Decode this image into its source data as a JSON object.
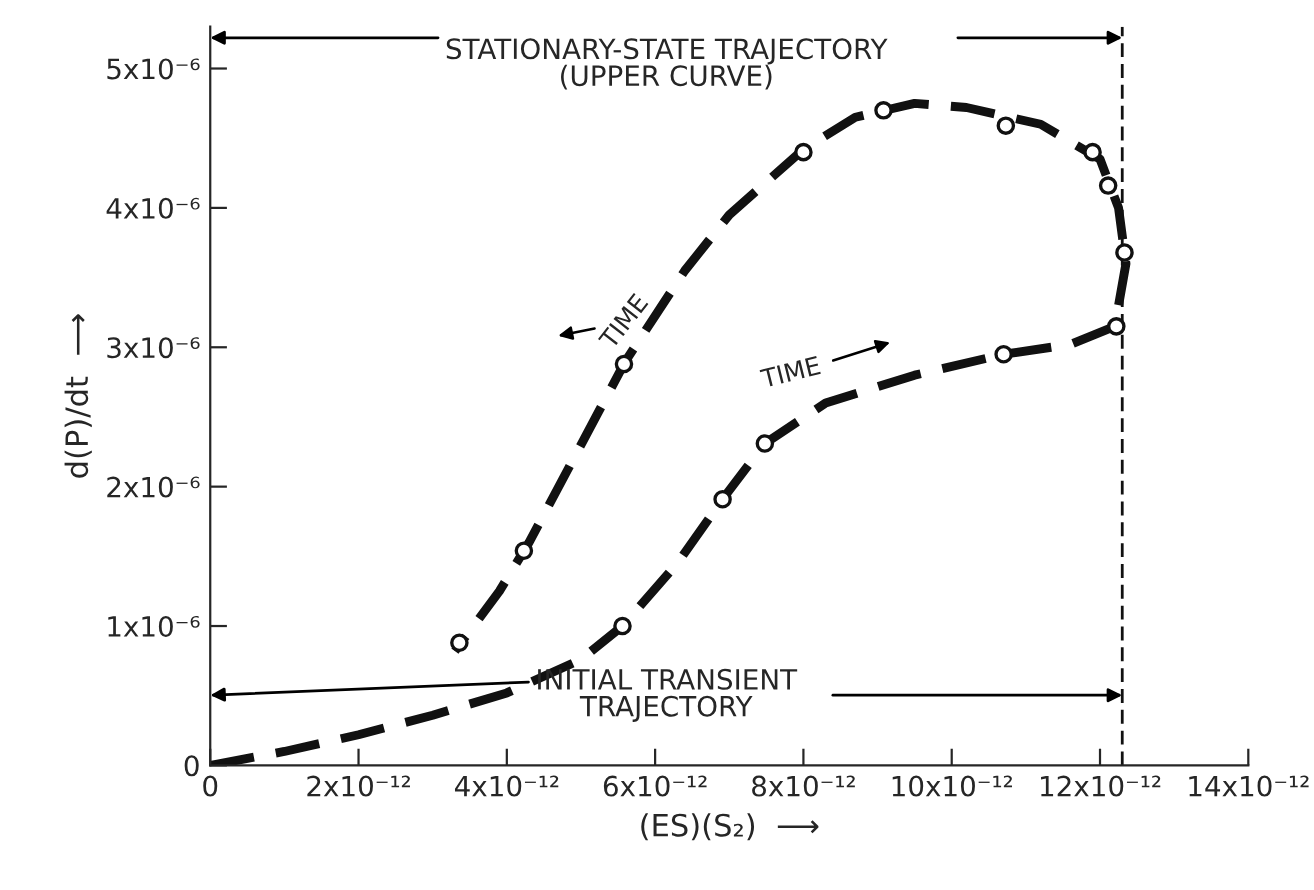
{
  "chart_data": {
    "type": "line",
    "xlabel": "(ES)(S₂)  ⟶",
    "ylabel": "d(P)/dt  ⟶",
    "series": [
      {
        "color": "#111111",
        "line_style": "dashed",
        "marker": "none",
        "x": [
          0,
          1e-12,
          2e-12,
          3e-12,
          4e-12,
          5e-12,
          5.56e-12,
          6.3e-12,
          6.91e-12,
          7.48e-12,
          8.3e-12,
          9.5e-12,
          1.07e-11,
          1.16e-11,
          1.22e-11,
          1.235e-11,
          1.225e-11,
          1.2e-11,
          1.12e-11,
          1.02e-11,
          9.5e-12,
          8.7e-12,
          8e-12,
          7e-12,
          6.4e-12,
          5.6e-12,
          5e-12,
          4.3e-12,
          3.9e-12,
          3.3e-12
        ],
        "values": [
          0,
          1e-07,
          2.2e-07,
          3.6e-07,
          5.2e-07,
          7.6e-07,
          1e-06,
          1.45e-06,
          1.91e-06,
          2.31e-06,
          2.6e-06,
          2.8e-06,
          2.95e-06,
          3.02e-06,
          3.15e-06,
          3.6e-06,
          4e-06,
          4.35e-06,
          4.6e-06,
          4.72e-06,
          4.75e-06,
          4.65e-06,
          4.42e-06,
          3.95e-06,
          3.55e-06,
          2.9e-06,
          2.3e-06,
          1.6e-06,
          1.25e-06,
          8.2e-07
        ]
      },
      {
        "type": "scatter",
        "color": "#111111",
        "marker": "circle",
        "x": [
          3.36e-12,
          4.23e-12,
          5.58e-12,
          8e-12,
          9.08e-12,
          1.073e-11,
          1.19e-11,
          1.211e-11,
          1.233e-11,
          1.222e-11,
          1.07e-11,
          7.48e-12,
          6.91e-12,
          5.56e-12
        ],
        "values": [
          8.8e-07,
          1.54e-06,
          2.88e-06,
          4.4e-06,
          4.7e-06,
          4.59e-06,
          4.4e-06,
          4.16e-06,
          3.68e-06,
          3.15e-06,
          2.95e-06,
          2.31e-06,
          1.91e-06,
          1e-06
        ]
      }
    ],
    "xlim": [
      0,
      1.4e-11
    ],
    "ylim": [
      0,
      5.3e-06
    ],
    "xticks": [
      0,
      {
        "value": 2e-12,
        "label": "2x10⁻¹²"
      },
      {
        "value": 4e-12,
        "label": "4x10⁻¹²"
      },
      {
        "value": 6e-12,
        "label": "6x10⁻¹²"
      },
      {
        "value": 8e-12,
        "label": "8x10⁻¹²"
      },
      {
        "value": 1e-11,
        "label": "10x10⁻¹²"
      },
      {
        "value": 1.2e-11,
        "label": "12x10⁻¹²"
      },
      {
        "value": 1.4e-11,
        "label": "14x10⁻¹²"
      }
    ],
    "yticks": [
      0,
      {
        "value": 1e-06,
        "label": "1x10⁻⁶"
      },
      {
        "value": 2e-06,
        "label": "2x10⁻⁶"
      },
      {
        "value": 3e-06,
        "label": "3x10⁻⁶"
      },
      {
        "value": 4e-06,
        "label": "4x10⁻⁶"
      },
      {
        "value": 5e-06,
        "label": "5x10⁻⁶"
      }
    ],
    "ref_lines": [
      {
        "axis": "x",
        "value": 1.23e-11,
        "line_style": "dashed",
        "color": "#111111"
      }
    ],
    "annotations": [
      "STATIONARY-STATE TRAJECTORY\n(UPPER CURVE)",
      "INITIAL TRANSIENT\nTRAJECTORY",
      "TIME",
      "TIME"
    ],
    "grid": false
  }
}
